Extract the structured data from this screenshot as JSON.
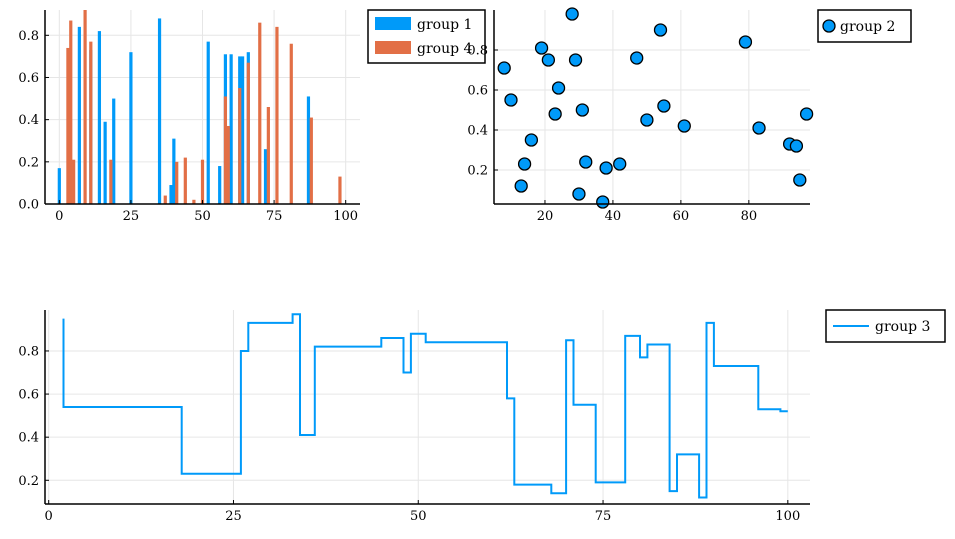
{
  "colors": {
    "group1": "#009af9",
    "group2": "#e26f46",
    "axis": "#000000",
    "grid": "#e6e6e6",
    "marker_edge": "#000000"
  },
  "chart_data": [
    {
      "type": "bar",
      "xlim": [
        -5,
        105
      ],
      "ylim": [
        0,
        0.92
      ],
      "xticks": [
        "0",
        "25",
        "50",
        "75",
        "100"
      ],
      "xtick_values": [
        0,
        25,
        50,
        75,
        100
      ],
      "yticks": [
        "0.0",
        "0.2",
        "0.4",
        "0.6",
        "0.8"
      ],
      "ytick_values": [
        0,
        0.2,
        0.4,
        0.6,
        0.8
      ],
      "legend_position": "top-right",
      "series": [
        {
          "name": "group 1",
          "x": [
            0,
            7,
            11,
            14,
            16,
            19,
            25,
            35,
            39,
            40,
            52,
            56,
            58,
            60,
            63,
            64,
            66,
            72,
            87
          ],
          "values": [
            0.17,
            0.84,
            0.73,
            0.82,
            0.39,
            0.5,
            0.72,
            0.88,
            0.09,
            0.31,
            0.77,
            0.18,
            0.71,
            0.71,
            0.7,
            0.7,
            0.72,
            0.26,
            0.51
          ]
        },
        {
          "name": "group 4",
          "x": [
            3,
            4,
            5,
            9,
            11,
            18,
            37,
            41,
            44,
            47,
            50,
            58,
            59,
            63,
            66,
            70,
            73,
            76,
            81,
            88,
            98
          ],
          "values": [
            0.74,
            0.87,
            0.21,
            0.92,
            0.77,
            0.21,
            0.04,
            0.2,
            0.22,
            0.02,
            0.21,
            0.51,
            0.37,
            0.55,
            0.67,
            0.86,
            0.46,
            0.84,
            0.76,
            0.41,
            0.13
          ]
        }
      ]
    },
    {
      "type": "scatter",
      "xlim": [
        5,
        98
      ],
      "ylim": [
        0.03,
        1.0
      ],
      "xticks": [
        "20",
        "40",
        "60",
        "80"
      ],
      "xtick_values": [
        20,
        40,
        60,
        80
      ],
      "yticks": [
        "0.2",
        "0.4",
        "0.6",
        "0.8"
      ],
      "ytick_values": [
        0.2,
        0.4,
        0.6,
        0.8
      ],
      "legend_position": "outside-right",
      "series": [
        {
          "name": "group 2",
          "x": [
            8,
            10,
            13,
            14,
            16,
            19,
            21,
            23,
            24,
            28,
            29,
            30,
            31,
            32,
            37,
            38,
            42,
            47,
            50,
            54,
            55,
            61,
            79,
            83,
            92,
            94,
            95,
            97
          ],
          "y": [
            0.71,
            0.55,
            0.12,
            0.23,
            0.35,
            0.81,
            0.75,
            0.48,
            0.61,
            0.98,
            0.75,
            0.08,
            0.5,
            0.24,
            0.04,
            0.21,
            0.23,
            0.76,
            0.45,
            0.9,
            0.52,
            0.42,
            0.84,
            0.41,
            0.33,
            0.32,
            0.15,
            0.48
          ]
        }
      ]
    },
    {
      "type": "line",
      "xlim": [
        -0.5,
        103
      ],
      "ylim": [
        0.09,
        0.99
      ],
      "xticks": [
        "0",
        "25",
        "50",
        "75",
        "100"
      ],
      "xtick_values": [
        0,
        25,
        50,
        75,
        100
      ],
      "yticks": [
        "0.2",
        "0.4",
        "0.6",
        "0.8"
      ],
      "ytick_values": [
        0.2,
        0.4,
        0.6,
        0.8
      ],
      "legend_position": "outside-right",
      "series": [
        {
          "name": "group 3",
          "x": [
            2,
            2,
            18,
            18,
            26,
            26,
            27,
            27,
            33,
            33,
            34,
            34,
            36,
            36,
            45,
            45,
            48,
            48,
            49,
            49,
            51,
            51,
            54,
            54,
            62,
            62,
            63,
            63,
            68,
            68,
            70,
            70,
            71,
            71,
            74,
            74,
            78,
            78,
            80,
            80,
            81,
            81,
            84,
            84,
            85,
            85,
            88,
            88,
            89,
            89,
            90,
            90,
            96,
            96,
            99,
            99,
            100
          ],
          "y": [
            0.95,
            0.54,
            0.54,
            0.23,
            0.23,
            0.8,
            0.8,
            0.93,
            0.93,
            0.97,
            0.97,
            0.41,
            0.41,
            0.82,
            0.82,
            0.86,
            0.86,
            0.7,
            0.7,
            0.88,
            0.88,
            0.84,
            0.84,
            0.84,
            0.84,
            0.58,
            0.58,
            0.18,
            0.18,
            0.14,
            0.14,
            0.85,
            0.85,
            0.55,
            0.55,
            0.19,
            0.19,
            0.87,
            0.87,
            0.77,
            0.77,
            0.83,
            0.83,
            0.15,
            0.15,
            0.32,
            0.32,
            0.12,
            0.12,
            0.93,
            0.93,
            0.73,
            0.73,
            0.53,
            0.53,
            0.52,
            0.52
          ]
        }
      ]
    }
  ]
}
